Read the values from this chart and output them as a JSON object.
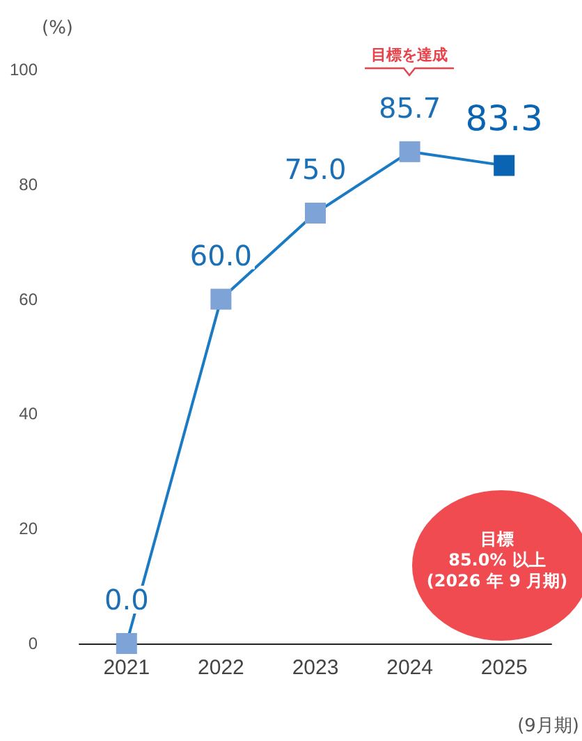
{
  "chart_data": {
    "type": "line",
    "ylabel": "(%)",
    "xlabel": "(9月期)",
    "categories": [
      "2021",
      "2022",
      "2023",
      "2024",
      "2025"
    ],
    "series": [
      {
        "color": "#1a7bc4",
        "colors": [
          "#7ea3d6",
          "#7ea3d6",
          "#7ea3d6",
          "#7ea3d6",
          "#0a64b2"
        ],
        "values": [
          0,
          60,
          75,
          85.7,
          83.3
        ],
        "value_labels": [
          "0.0",
          "60.0",
          "75.0",
          "85.7",
          "83.3"
        ]
      }
    ],
    "ylim": [
      0,
      100
    ],
    "yticks": [
      0,
      20,
      40,
      60,
      80,
      100
    ],
    "grid": false,
    "marker": "square",
    "line_style": "solid",
    "annotations": [
      "目標を達成",
      "目標\n85.0% 以上\n(2026 年 9 月期)"
    ]
  }
}
